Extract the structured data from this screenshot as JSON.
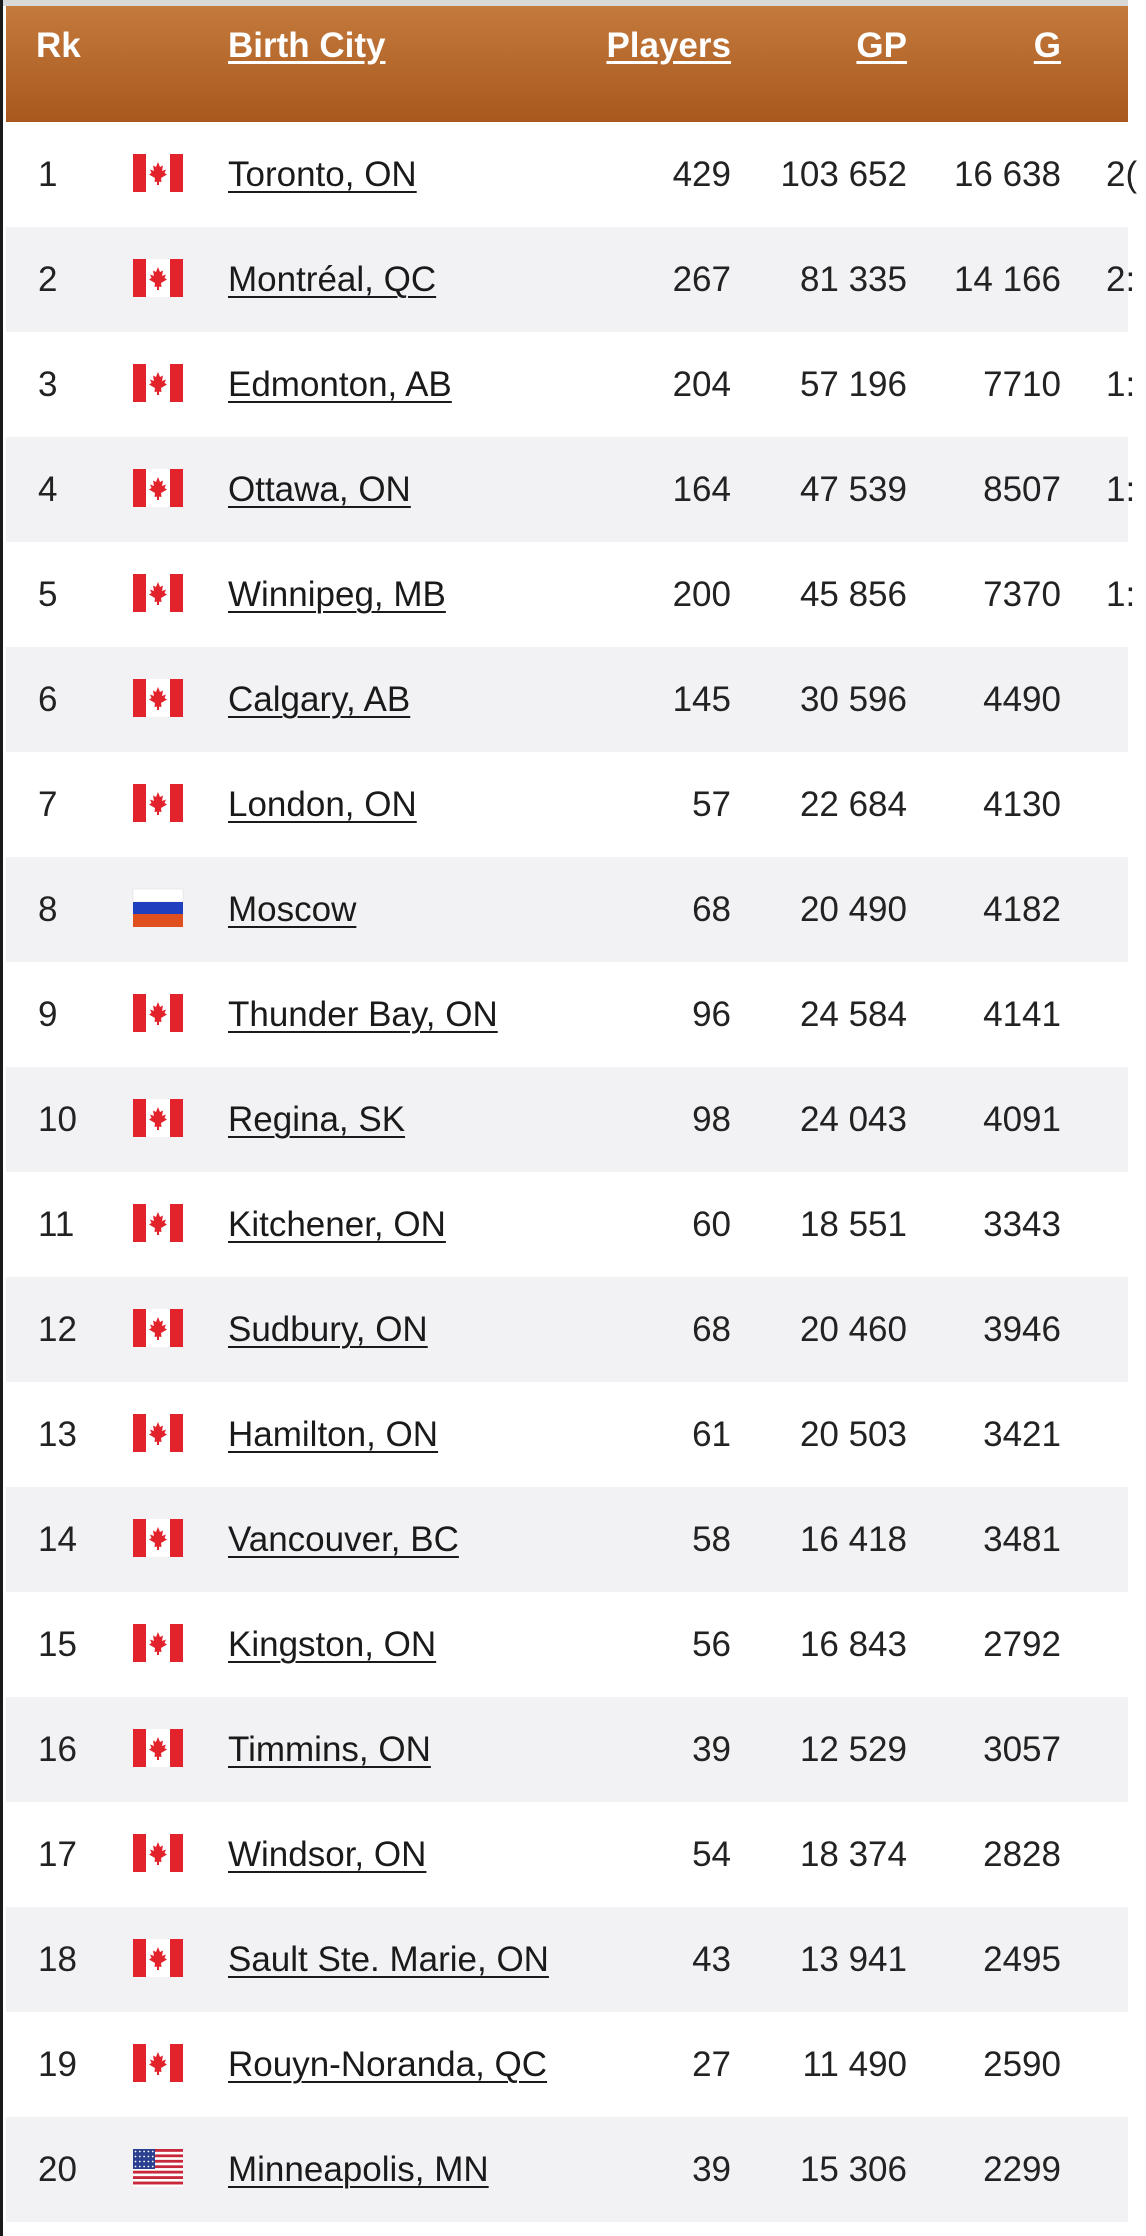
{
  "table": {
    "headers": {
      "rk": "Rk",
      "birth_city": "Birth City",
      "players": "Players",
      "gp": "GP",
      "g": "G"
    },
    "rows": [
      {
        "rk": "1",
        "flag": "canada-flag-icon",
        "city": "Toronto, ON",
        "players": "429",
        "gp": "103 652",
        "g": "16 638",
        "extra": "2("
      },
      {
        "rk": "2",
        "flag": "canada-flag-icon",
        "city": "Montréal, QC",
        "players": "267",
        "gp": "81 335",
        "g": "14 166",
        "extra": "2:"
      },
      {
        "rk": "3",
        "flag": "canada-flag-icon",
        "city": "Edmonton, AB",
        "players": "204",
        "gp": "57 196",
        "g": "7710",
        "extra": "1:"
      },
      {
        "rk": "4",
        "flag": "canada-flag-icon",
        "city": "Ottawa, ON",
        "players": "164",
        "gp": "47 539",
        "g": "8507",
        "extra": "1:"
      },
      {
        "rk": "5",
        "flag": "canada-flag-icon",
        "city": "Winnipeg, MB",
        "players": "200",
        "gp": "45 856",
        "g": "7370",
        "extra": "1:"
      },
      {
        "rk": "6",
        "flag": "canada-flag-icon",
        "city": "Calgary, AB",
        "players": "145",
        "gp": "30 596",
        "g": "4490",
        "extra": ""
      },
      {
        "rk": "7",
        "flag": "canada-flag-icon",
        "city": "London, ON",
        "players": "57",
        "gp": "22 684",
        "g": "4130",
        "extra": ""
      },
      {
        "rk": "8",
        "flag": "russia-flag-icon",
        "city": "Moscow",
        "players": "68",
        "gp": "20 490",
        "g": "4182",
        "extra": ""
      },
      {
        "rk": "9",
        "flag": "canada-flag-icon",
        "city": "Thunder Bay, ON",
        "players": "96",
        "gp": "24 584",
        "g": "4141",
        "extra": ""
      },
      {
        "rk": "10",
        "flag": "canada-flag-icon",
        "city": "Regina, SK",
        "players": "98",
        "gp": "24 043",
        "g": "4091",
        "extra": ""
      },
      {
        "rk": "11",
        "flag": "canada-flag-icon",
        "city": "Kitchener, ON",
        "players": "60",
        "gp": "18 551",
        "g": "3343",
        "extra": ""
      },
      {
        "rk": "12",
        "flag": "canada-flag-icon",
        "city": "Sudbury, ON",
        "players": "68",
        "gp": "20 460",
        "g": "3946",
        "extra": ""
      },
      {
        "rk": "13",
        "flag": "canada-flag-icon",
        "city": "Hamilton, ON",
        "players": "61",
        "gp": "20 503",
        "g": "3421",
        "extra": ""
      },
      {
        "rk": "14",
        "flag": "canada-flag-icon",
        "city": "Vancouver, BC",
        "players": "58",
        "gp": "16 418",
        "g": "3481",
        "extra": ""
      },
      {
        "rk": "15",
        "flag": "canada-flag-icon",
        "city": "Kingston, ON",
        "players": "56",
        "gp": "16 843",
        "g": "2792",
        "extra": ""
      },
      {
        "rk": "16",
        "flag": "canada-flag-icon",
        "city": "Timmins, ON",
        "players": "39",
        "gp": "12 529",
        "g": "3057",
        "extra": ""
      },
      {
        "rk": "17",
        "flag": "canada-flag-icon",
        "city": "Windsor, ON",
        "players": "54",
        "gp": "18 374",
        "g": "2828",
        "extra": ""
      },
      {
        "rk": "18",
        "flag": "canada-flag-icon",
        "city": "Sault Ste. Marie, ON",
        "players": "43",
        "gp": "13 941",
        "g": "2495",
        "extra": ""
      },
      {
        "rk": "19",
        "flag": "canada-flag-icon",
        "city": "Rouyn-Noranda, QC",
        "players": "27",
        "gp": "11 490",
        "g": "2590",
        "extra": ""
      },
      {
        "rk": "20",
        "flag": "usa-flag-icon",
        "city": "Minneapolis, MN",
        "players": "39",
        "gp": "15 306",
        "g": "2299",
        "extra": ""
      }
    ]
  },
  "colors": {
    "header_top": "#c47a3c",
    "header_bottom": "#a8581e",
    "row_alt": "#f2f1f3"
  }
}
